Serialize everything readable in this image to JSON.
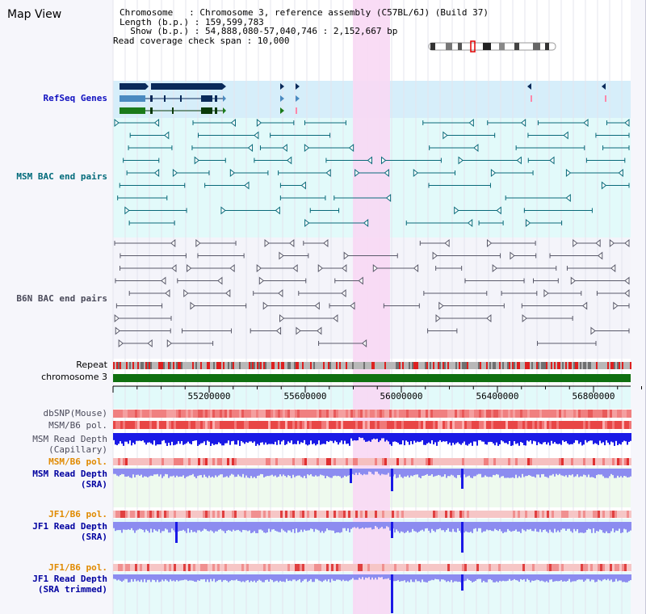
{
  "header": {
    "title": "Map View",
    "chromosome_line": "Chromosome   : Chromosome 3, reference assembly (C57BL/6J) (Build 37)",
    "length_line": "Length (b.p.) : 159,599,783",
    "show_line": "  Show (b.p.) : 54,888,080-57,040,746 : 2,152,667 bp",
    "coverage_line": "Read coverage check span : 10,000"
  },
  "tracks": {
    "refseq": "RefSeq Genes",
    "msm_bac": "MSM BAC end pairs",
    "b6n_bac": "B6N BAC end pairs",
    "repeat": "Repeat",
    "chromosome": "chromosome 3",
    "dbsnp": "dbSNP(Mouse)",
    "msm_b6_pol": "MSM/B6 pol.",
    "msm_depth_cap_1": "MSM Read Depth",
    "msm_depth_cap_2": "(Capillary)",
    "msm_b6_pol_2": "MSM/B6 pol.",
    "msm_depth_sra_1": "MSM Read Depth",
    "msm_depth_sra_2": "(SRA)",
    "jf1_b6_pol": "JF1/B6 pol.",
    "jf1_depth_sra_1": "JF1 Read Depth",
    "jf1_depth_sra_2": "(SRA)",
    "jf1_b6_pol_2": "JF1/B6 pol.",
    "jf1_depth_trim_1": "JF1 Read Depth",
    "jf1_depth_trim_2": "(SRA trimmed)"
  },
  "axis": {
    "ticks": [
      "55200000",
      "55600000",
      "56000000",
      "56400000",
      "56800000"
    ]
  },
  "colors": {
    "highlight": "#f8d8f4",
    "refseq_bg": "#d6eefa",
    "msm_bg": "#e2fafa",
    "b6n_bg": "#f4f4fa",
    "chromosome_bar": "#107010",
    "depth_blue": "#1a1ae6",
    "depth_light": "#8c8cf0",
    "pol_red": "#e64646"
  }
}
